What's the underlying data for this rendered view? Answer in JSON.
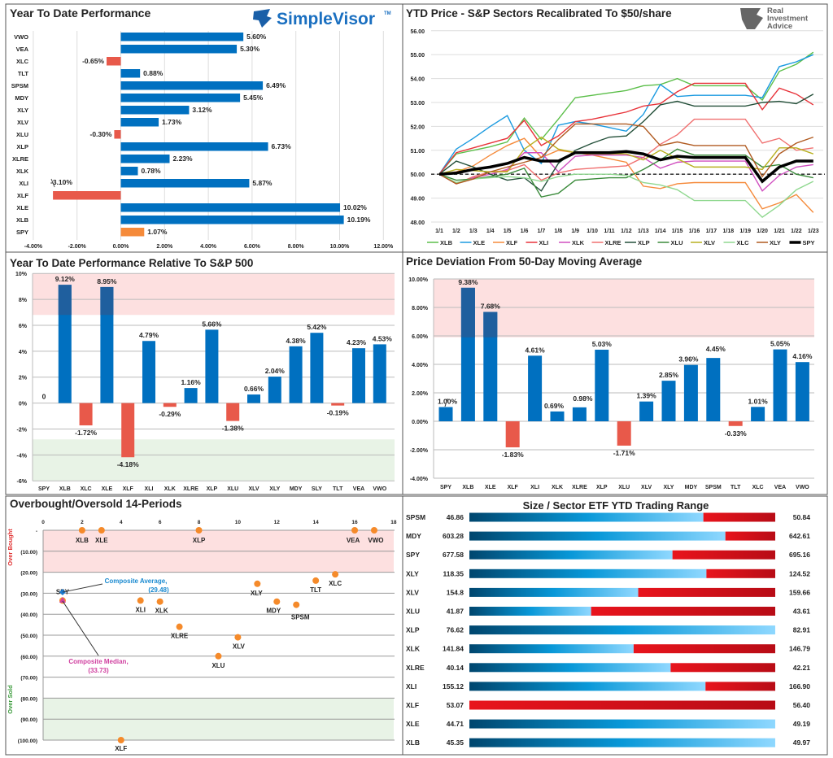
{
  "colors": {
    "positive": "#0070c0",
    "negative": "#e8594a",
    "spy": "#f58a3a",
    "overbought_zone": "#fde0e0",
    "oversold_zone": "#e8f3e6",
    "range_low": "#00466e",
    "range_high": "#8fd8ff",
    "range_red": "#e8141c"
  },
  "logos": {
    "simplevisor": "SimpleVisor",
    "simplevisor_tm": "TM",
    "ria": [
      "Real",
      "Investment",
      "Advice"
    ]
  },
  "chart_data": [
    {
      "type": "bar",
      "orientation": "horizontal",
      "title": "Year To Date Performance",
      "categories": [
        "VWO",
        "VEA",
        "XLC",
        "TLT",
        "SPSM",
        "MDY",
        "XLY",
        "XLV",
        "XLU",
        "XLP",
        "XLRE",
        "XLK",
        "XLI",
        "XLF",
        "XLE",
        "XLB",
        "SPY"
      ],
      "values": [
        5.6,
        5.3,
        -0.65,
        0.88,
        6.49,
        5.45,
        3.12,
        1.73,
        -0.3,
        6.73,
        2.23,
        0.78,
        5.87,
        -3.1,
        10.02,
        10.19,
        1.07
      ],
      "labels": [
        "5.60%",
        "5.30%",
        "-0.65%",
        "0.88%",
        "6.49%",
        "5.45%",
        "3.12%",
        "1.73%",
        "-0.30%",
        "6.73%",
        "2.23%",
        "0.78%",
        "5.87%",
        "-3.10%",
        "10.02%",
        "10.19%",
        "1.07%"
      ],
      "xlim": [
        -4,
        12
      ],
      "xticks": [
        "-4.00%",
        "-2.00%",
        "0.00%",
        "2.00%",
        "4.00%",
        "6.00%",
        "8.00%",
        "10.00%",
        "12.00%"
      ],
      "grid": true
    },
    {
      "type": "line",
      "title": "YTD Price - S&P Sectors Recalibrated To $50/share",
      "x": [
        "1/1",
        "1/2",
        "1/3",
        "1/4",
        "1/5",
        "1/6",
        "1/7",
        "1/8",
        "1/9",
        "1/10",
        "1/11",
        "1/12",
        "1/13",
        "1/14",
        "1/15",
        "1/16",
        "1/17",
        "1/18",
        "1/19",
        "1/20",
        "1/21",
        "1/22",
        "1/23"
      ],
      "ylim": [
        48,
        56
      ],
      "yticks": [
        "48.00",
        "49.00",
        "50.00",
        "51.00",
        "52.00",
        "53.00",
        "54.00",
        "55.00",
        "56.00"
      ],
      "reference_line": 50,
      "legend": "bottom",
      "grid": true,
      "series": [
        {
          "name": "XLB",
          "color": "#5cbf4a",
          "values": [
            50,
            50.85,
            51.0,
            51.15,
            51.35,
            52.35,
            51.45,
            52.3,
            53.2,
            53.3,
            53.4,
            53.5,
            53.7,
            53.75,
            54.0,
            53.7,
            53.7,
            53.7,
            53.7,
            53.1,
            54.3,
            54.6,
            55.1
          ]
        },
        {
          "name": "XLE",
          "color": "#1a9ae0",
          "values": [
            50,
            51.05,
            51.5,
            52.0,
            52.45,
            51.0,
            50.45,
            52.05,
            52.2,
            52.1,
            51.95,
            51.8,
            52.5,
            53.75,
            53.25,
            53.3,
            53.3,
            53.3,
            53.3,
            53.2,
            54.5,
            54.7,
            55.0
          ]
        },
        {
          "name": "XLF",
          "color": "#f58a3a",
          "values": [
            50,
            50.1,
            50.35,
            50.8,
            51.2,
            51.5,
            50.7,
            51.0,
            50.9,
            50.8,
            50.65,
            50.5,
            49.5,
            49.4,
            49.6,
            49.65,
            49.65,
            49.65,
            49.65,
            48.55,
            48.8,
            49.15,
            48.4
          ]
        },
        {
          "name": "XLI",
          "color": "#e8333a",
          "values": [
            50,
            50.9,
            51.1,
            51.3,
            51.5,
            52.25,
            51.2,
            51.6,
            52.2,
            52.3,
            52.45,
            52.6,
            52.85,
            52.95,
            53.45,
            53.8,
            53.8,
            53.8,
            53.8,
            52.7,
            53.6,
            53.35,
            52.9
          ]
        },
        {
          "name": "XLK",
          "color": "#d04fc0",
          "values": [
            50,
            49.6,
            49.85,
            50.0,
            50.2,
            50.9,
            50.9,
            50.1,
            50.75,
            50.8,
            50.8,
            50.8,
            50.7,
            50.25,
            50.5,
            50.55,
            50.55,
            50.55,
            50.55,
            49.3,
            49.95,
            50.3,
            50.4
          ]
        },
        {
          "name": "XLRE",
          "color": "#f07070",
          "values": [
            50,
            49.6,
            49.9,
            50.1,
            50.15,
            50.4,
            49.75,
            50.05,
            50.2,
            50.25,
            50.3,
            50.35,
            50.7,
            51.25,
            51.65,
            52.3,
            52.3,
            52.3,
            52.3,
            51.3,
            51.5,
            51.0,
            51.1
          ]
        },
        {
          "name": "XLP",
          "color": "#24503a",
          "values": [
            50,
            50.55,
            50.3,
            50.0,
            49.75,
            49.85,
            49.3,
            50.45,
            51.0,
            51.3,
            51.55,
            51.6,
            52.2,
            52.9,
            53.05,
            52.85,
            52.85,
            52.85,
            52.85,
            53.0,
            53.05,
            52.95,
            53.35
          ]
        },
        {
          "name": "XLU",
          "color": "#3a8a3a",
          "values": [
            50,
            49.75,
            49.8,
            49.9,
            50.0,
            50.25,
            49.05,
            49.2,
            49.75,
            49.8,
            49.85,
            49.85,
            50.2,
            50.6,
            51.05,
            50.8,
            50.8,
            50.8,
            50.8,
            50.3,
            50.4,
            50.0,
            49.85
          ]
        },
        {
          "name": "XLV",
          "color": "#b8b020",
          "values": [
            50,
            50.2,
            50.15,
            50.1,
            50.1,
            51.05,
            51.55,
            51.05,
            50.9,
            50.85,
            50.85,
            50.85,
            50.6,
            51.0,
            50.65,
            50.3,
            50.3,
            50.3,
            50.3,
            50.2,
            51.1,
            51.1,
            50.85
          ]
        },
        {
          "name": "XLC",
          "color": "#90d890",
          "values": [
            50,
            49.65,
            49.8,
            49.85,
            49.9,
            49.85,
            49.7,
            49.9,
            50.0,
            50.0,
            50.0,
            49.95,
            49.65,
            49.55,
            49.35,
            48.9,
            48.9,
            48.9,
            48.9,
            48.2,
            48.7,
            49.35,
            49.7
          ]
        },
        {
          "name": "XLY",
          "color": "#b05a20",
          "values": [
            50,
            49.6,
            49.8,
            50.1,
            50.3,
            50.5,
            50.7,
            51.45,
            52.1,
            52.1,
            52.1,
            52.1,
            52.0,
            51.2,
            51.35,
            51.2,
            51.2,
            51.2,
            51.2,
            49.9,
            50.85,
            51.3,
            51.55
          ]
        },
        {
          "name": "SPY",
          "color": "#000000",
          "values": [
            50,
            50.05,
            50.2,
            50.3,
            50.45,
            50.7,
            50.55,
            50.55,
            50.9,
            50.9,
            50.9,
            50.95,
            50.85,
            50.6,
            50.75,
            50.7,
            50.7,
            50.7,
            50.7,
            49.7,
            50.3,
            50.55,
            50.55
          ]
        }
      ]
    },
    {
      "type": "bar",
      "title": "Year To Date Performance Relative To S&P 500",
      "categories": [
        "SPY",
        "XLB",
        "XLC",
        "XLE",
        "XLF",
        "XLI",
        "XLK",
        "XLRE",
        "XLP",
        "XLU",
        "XLV",
        "XLY",
        "MDY",
        "SLY",
        "TLT",
        "VEA",
        "VWO"
      ],
      "values": [
        0,
        9.12,
        -1.72,
        8.95,
        -4.18,
        4.79,
        -0.29,
        1.16,
        5.66,
        -1.38,
        0.66,
        2.04,
        4.38,
        5.42,
        -0.19,
        4.23,
        4.53
      ],
      "labels": [
        "0",
        "9.12%",
        "-1.72%",
        "8.95%",
        "-4.18%",
        "4.79%",
        "-0.29%",
        "1.16%",
        "5.66%",
        "-1.38%",
        "0.66%",
        "2.04%",
        "4.38%",
        "5.42%",
        "-0.19%",
        "4.23%",
        "4.53%"
      ],
      "ylim": [
        -6,
        10
      ],
      "yticks": [
        "-6%",
        "-4%",
        "-2%",
        "0%",
        "2%",
        "4%",
        "6%",
        "8%",
        "10%"
      ],
      "overbought_band": [
        6.8,
        10
      ],
      "oversold_band": [
        -6,
        -2.8
      ],
      "grid": true
    },
    {
      "type": "bar",
      "title": "Price Deviation From 50-Day Moving Average",
      "categories": [
        "SPY",
        "XLB",
        "XLE",
        "XLF",
        "XLI",
        "XLK",
        "XLRE",
        "XLP",
        "XLU",
        "XLV",
        "XLY",
        "MDY",
        "SPSM",
        "TLT",
        "XLC",
        "VEA",
        "VWO"
      ],
      "values": [
        1.0,
        9.38,
        7.68,
        -1.83,
        4.61,
        0.69,
        0.98,
        5.03,
        -1.71,
        1.39,
        2.85,
        3.96,
        4.45,
        -0.33,
        1.01,
        5.05,
        4.16
      ],
      "labels": [
        "1.00%",
        "9.38%",
        "7.68%",
        "-1.83%",
        "4.61%",
        "0.69%",
        "0.98%",
        "5.03%",
        "-1.71%",
        "1.39%",
        "2.85%",
        "3.96%",
        "4.45%",
        "-0.33%",
        "1.01%",
        "5.05%",
        "4.16%"
      ],
      "ylim": [
        -4,
        10
      ],
      "yticks": [
        "-4.00%",
        "-2.00%",
        "0.00%",
        "2.00%",
        "4.00%",
        "6.00%",
        "8.00%",
        "10.00%"
      ],
      "overbought_band": [
        5.9,
        10
      ],
      "grid": true
    },
    {
      "type": "scatter",
      "title": "Overbought/Oversold 14-Periods",
      "xlim": [
        0,
        18
      ],
      "xticks": [
        "0",
        "2",
        "4",
        "6",
        "8",
        "10",
        "12",
        "14",
        "16",
        "18"
      ],
      "ylim": [
        -100,
        0
      ],
      "yticks": [
        "-",
        "(10.00)",
        "(20.00)",
        "(30.00)",
        "(40.00)",
        "(50.00)",
        "(60.00)",
        "(70.00)",
        "(80.00)",
        "(90.00)",
        "(100.00)"
      ],
      "zone_labels": {
        "overbought": "Over Bought",
        "oversold": "Over Sold"
      },
      "overbought_band": [
        -20,
        0
      ],
      "oversold_band": [
        -100,
        -80
      ],
      "points": [
        {
          "label": "SPY",
          "x": 1,
          "y": -33.5
        },
        {
          "label": "XLB",
          "x": 2,
          "y": 0
        },
        {
          "label": "XLE",
          "x": 3,
          "y": 0
        },
        {
          "label": "XLF",
          "x": 4,
          "y": -100
        },
        {
          "label": "XLI",
          "x": 5,
          "y": -33.5
        },
        {
          "label": "XLK",
          "x": 6,
          "y": -34
        },
        {
          "label": "XLRE",
          "x": 7,
          "y": -46
        },
        {
          "label": "XLP",
          "x": 8,
          "y": 0
        },
        {
          "label": "XLU",
          "x": 9,
          "y": -60
        },
        {
          "label": "XLV",
          "x": 10,
          "y": -51
        },
        {
          "label": "XLY",
          "x": 11,
          "y": -25.5
        },
        {
          "label": "MDY",
          "x": 12,
          "y": -34
        },
        {
          "label": "SPSM",
          "x": 13,
          "y": -35.5
        },
        {
          "label": "TLT",
          "x": 14,
          "y": -24
        },
        {
          "label": "XLC",
          "x": 15,
          "y": -21
        },
        {
          "label": "VEA",
          "x": 16,
          "y": 0
        },
        {
          "label": "VWO",
          "x": 17,
          "y": 0
        }
      ],
      "composite_average": {
        "label": "Composite Average,",
        "value_label": "(29.48)",
        "x": 1,
        "y": -29.48
      },
      "composite_median": {
        "label": "Composite Median,",
        "value_label": "(33.73)",
        "x": 1,
        "y": -33.73
      }
    },
    {
      "type": "table",
      "title": "Size / Sector ETF YTD Trading Range",
      "rows": [
        {
          "ticker": "SPSM",
          "low": "46.86",
          "high": "50.84",
          "position": 0.765
        },
        {
          "ticker": "MDY",
          "low": "603.28",
          "high": "642.61",
          "position": 0.837
        },
        {
          "ticker": "SPY",
          "low": "677.58",
          "high": "695.16",
          "position": 0.664
        },
        {
          "ticker": "XLY",
          "low": "118.35",
          "high": "124.52",
          "position": 0.775
        },
        {
          "ticker": "XLV",
          "low": "154.8",
          "high": "159.66",
          "position": 0.552
        },
        {
          "ticker": "XLU",
          "low": "41.87",
          "high": "43.61",
          "position": 0.398
        },
        {
          "ticker": "XLP",
          "low": "76.62",
          "high": "82.91",
          "position": 1.0
        },
        {
          "ticker": "XLK",
          "low": "141.84",
          "high": "146.79",
          "position": 0.537
        },
        {
          "ticker": "XLRE",
          "low": "40.14",
          "high": "42.21",
          "position": 0.658
        },
        {
          "ticker": "XLI",
          "low": "155.12",
          "high": "166.90",
          "position": 0.772
        },
        {
          "ticker": "XLF",
          "low": "53.07",
          "high": "56.40",
          "position": 0.0
        },
        {
          "ticker": "XLE",
          "low": "44.71",
          "high": "49.19",
          "position": 1.0
        },
        {
          "ticker": "XLB",
          "low": "45.35",
          "high": "49.97",
          "position": 1.0
        }
      ]
    }
  ]
}
